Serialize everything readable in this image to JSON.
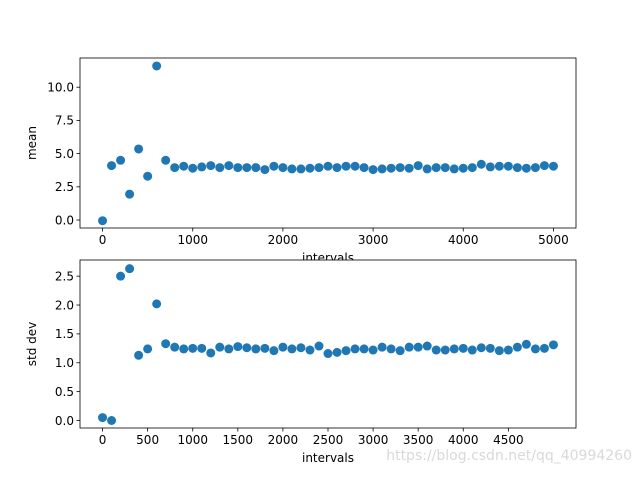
{
  "watermark": "https://blog.csdn.net/qq_40994260",
  "chart_data": [
    {
      "type": "scatter",
      "xlabel": "intervals",
      "ylabel": "mean",
      "xlim": [
        -250,
        5250
      ],
      "ylim": [
        -0.6,
        12.2
      ],
      "xticks": [
        0,
        1000,
        2000,
        3000,
        4000,
        5000
      ],
      "yticks": [
        0.0,
        2.5,
        5.0,
        7.5,
        10.0
      ],
      "ytick_labels": [
        "0.0",
        "2.5",
        "5.0",
        "7.5",
        "10.0"
      ],
      "color": "#1f77b4",
      "x": [
        0,
        100,
        200,
        300,
        400,
        500,
        600,
        700,
        800,
        900,
        1000,
        1100,
        1200,
        1300,
        1400,
        1500,
        1600,
        1700,
        1800,
        1900,
        2000,
        2100,
        2200,
        2300,
        2400,
        2500,
        2600,
        2700,
        2800,
        2900,
        3000,
        3100,
        3200,
        3300,
        3400,
        3500,
        3600,
        3700,
        3800,
        3900,
        4000,
        4100,
        4200,
        4300,
        4400,
        4500,
        4600,
        4700,
        4800,
        4900,
        5000
      ],
      "y": [
        -0.05,
        4.1,
        4.5,
        1.95,
        5.35,
        3.3,
        11.6,
        4.5,
        3.95,
        4.05,
        3.9,
        4.0,
        4.1,
        3.95,
        4.1,
        3.95,
        3.95,
        3.95,
        3.8,
        4.05,
        3.95,
        3.85,
        3.85,
        3.9,
        3.95,
        4.05,
        3.95,
        4.05,
        4.05,
        3.95,
        3.8,
        3.85,
        3.9,
        3.95,
        3.9,
        4.1,
        3.85,
        3.95,
        3.95,
        3.85,
        3.9,
        3.95,
        4.2,
        4.0,
        4.05,
        4.05,
        3.95,
        3.9,
        3.95,
        4.1,
        4.05
      ]
    },
    {
      "type": "scatter",
      "xlabel": "intervals",
      "ylabel": "std dev",
      "xlim": [
        -250,
        5250
      ],
      "ylim": [
        -0.13,
        2.78
      ],
      "xticks": [
        0,
        500,
        1000,
        1500,
        2000,
        2500,
        3000,
        3500,
        4000,
        4500
      ],
      "yticks": [
        0.0,
        0.5,
        1.0,
        1.5,
        2.0,
        2.5
      ],
      "ytick_labels": [
        "0.0",
        "0.5",
        "1.0",
        "1.5",
        "2.0",
        "2.5"
      ],
      "color": "#1f77b4",
      "x": [
        0,
        100,
        200,
        300,
        400,
        500,
        600,
        700,
        800,
        900,
        1000,
        1100,
        1200,
        1300,
        1400,
        1500,
        1600,
        1700,
        1800,
        1900,
        2000,
        2100,
        2200,
        2300,
        2400,
        2500,
        2600,
        2700,
        2800,
        2900,
        3000,
        3100,
        3200,
        3300,
        3400,
        3500,
        3600,
        3700,
        3800,
        3900,
        4000,
        4100,
        4200,
        4300,
        4400,
        4500,
        4600,
        4700,
        4800,
        4900,
        5000
      ],
      "y": [
        0.05,
        0.0,
        2.5,
        2.63,
        1.13,
        1.24,
        2.02,
        1.33,
        1.27,
        1.24,
        1.25,
        1.25,
        1.17,
        1.27,
        1.24,
        1.28,
        1.26,
        1.24,
        1.25,
        1.21,
        1.27,
        1.24,
        1.26,
        1.22,
        1.29,
        1.16,
        1.18,
        1.21,
        1.24,
        1.24,
        1.22,
        1.27,
        1.24,
        1.21,
        1.27,
        1.27,
        1.29,
        1.22,
        1.22,
        1.24,
        1.25,
        1.22,
        1.26,
        1.25,
        1.21,
        1.22,
        1.27,
        1.32,
        1.24,
        1.25,
        1.31
      ]
    }
  ]
}
